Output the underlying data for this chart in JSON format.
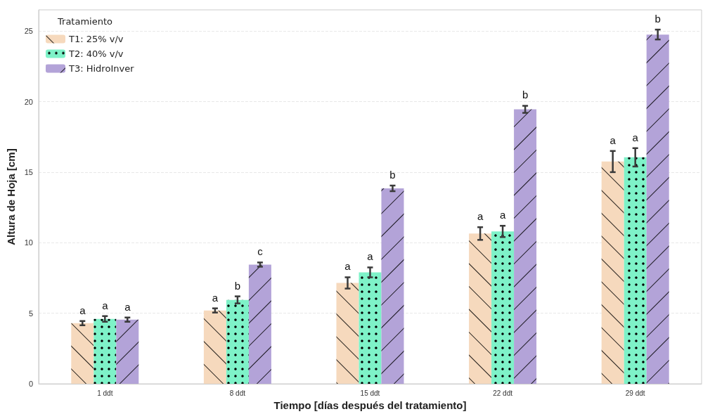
{
  "chart_data": {
    "type": "bar",
    "xlabel": "Tiempo [días después del tratamiento]",
    "ylabel": "Altura de Hoja [cm]",
    "legend_title": "Tratamiento",
    "categories": [
      "1 ddt",
      "8 ddt",
      "15 ddt",
      "22 ddt",
      "29 ddt"
    ],
    "series": [
      {
        "name": "T1: 25% v/v",
        "color": "#f6d9bd",
        "values": [
          4.3,
          5.2,
          7.15,
          10.65,
          15.75
        ],
        "errors": [
          0.15,
          0.15,
          0.4,
          0.45,
          0.75
        ],
        "value_labels": [
          "a",
          "a",
          "a",
          "a",
          "a"
        ]
      },
      {
        "name": "T2: 40% v/v",
        "color": "#7ef2c8",
        "values": [
          4.6,
          5.95,
          7.9,
          10.8,
          16.05
        ],
        "errors": [
          0.2,
          0.25,
          0.35,
          0.4,
          0.65
        ],
        "value_labels": [
          "a",
          "b",
          "a",
          "a",
          "a"
        ]
      },
      {
        "name": "T3: HidroInver",
        "color": "#b3a3d8",
        "values": [
          4.55,
          8.45,
          13.85,
          19.45,
          24.75
        ],
        "errors": [
          0.15,
          0.15,
          0.2,
          0.25,
          0.35
        ],
        "value_labels": [
          "a",
          "c",
          "b",
          "b",
          "b"
        ]
      }
    ],
    "ylim": [
      0,
      26.5
    ],
    "yticks": [
      0,
      5,
      10,
      15,
      20,
      25
    ],
    "grid": "y",
    "legend": "top left"
  }
}
